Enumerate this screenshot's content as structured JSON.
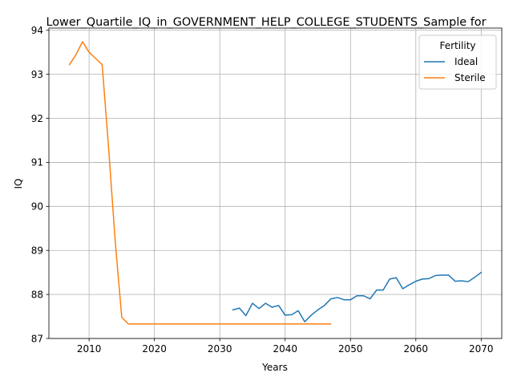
{
  "chart_data": {
    "type": "line",
    "title": "Lower_Quartile_IQ_in_GOVERNMENT_HELP_COLLEGE_STUDENTS_Sample for",
    "xlabel": "Years",
    "ylabel": "IQ",
    "xlim": [
      2003.85,
      2073.15
    ],
    "ylim": [
      87.0,
      94.05
    ],
    "xticks": [
      2010,
      2020,
      2030,
      2040,
      2050,
      2060,
      2070
    ],
    "yticks": [
      87,
      88,
      89,
      90,
      91,
      92,
      93,
      94
    ],
    "grid": true,
    "legend": {
      "title": "Fertility",
      "placement": "top-right"
    },
    "series": [
      {
        "name": "Ideal",
        "color": "#1f77b4",
        "x": [
          2032,
          2033,
          2034,
          2035,
          2036,
          2037,
          2038,
          2039,
          2040,
          2041,
          2042,
          2043,
          2044,
          2045,
          2046,
          2047,
          2048,
          2049,
          2050,
          2051,
          2052,
          2053,
          2054,
          2055,
          2056,
          2057,
          2058,
          2059,
          2060,
          2061,
          2062,
          2063,
          2064,
          2065,
          2066,
          2067,
          2068,
          2069,
          2070
        ],
        "y": [
          87.65,
          87.69,
          87.52,
          87.8,
          87.68,
          87.8,
          87.71,
          87.75,
          87.53,
          87.54,
          87.63,
          87.38,
          87.53,
          87.65,
          87.75,
          87.9,
          87.93,
          87.88,
          87.88,
          87.97,
          87.97,
          87.9,
          88.1,
          88.1,
          88.35,
          88.38,
          88.13,
          88.22,
          88.3,
          88.35,
          88.36,
          88.43,
          88.44,
          88.44,
          88.3,
          88.31,
          88.29,
          88.39,
          88.5
        ]
      },
      {
        "name": "Sterile",
        "color": "#ff7f0e",
        "x": [
          2007,
          2008,
          2009,
          2010,
          2011,
          2012,
          2013,
          2014,
          2015,
          2016,
          2017,
          2018,
          2019,
          2020,
          2021,
          2022,
          2023,
          2024,
          2025,
          2026,
          2027,
          2028,
          2029,
          2030,
          2031,
          2032,
          2033,
          2034,
          2035,
          2036,
          2037,
          2038,
          2039,
          2040,
          2041,
          2042,
          2043,
          2044,
          2045,
          2046,
          2047
        ],
        "y": [
          93.22,
          93.45,
          93.74,
          93.5,
          93.36,
          93.22,
          91.3,
          89.2,
          87.48,
          87.33,
          87.33,
          87.33,
          87.33,
          87.33,
          87.33,
          87.33,
          87.33,
          87.33,
          87.33,
          87.33,
          87.33,
          87.33,
          87.33,
          87.33,
          87.33,
          87.33,
          87.33,
          87.33,
          87.33,
          87.33,
          87.33,
          87.33,
          87.33,
          87.33,
          87.33,
          87.33,
          87.33,
          87.33,
          87.33,
          87.33,
          87.33
        ]
      }
    ]
  }
}
